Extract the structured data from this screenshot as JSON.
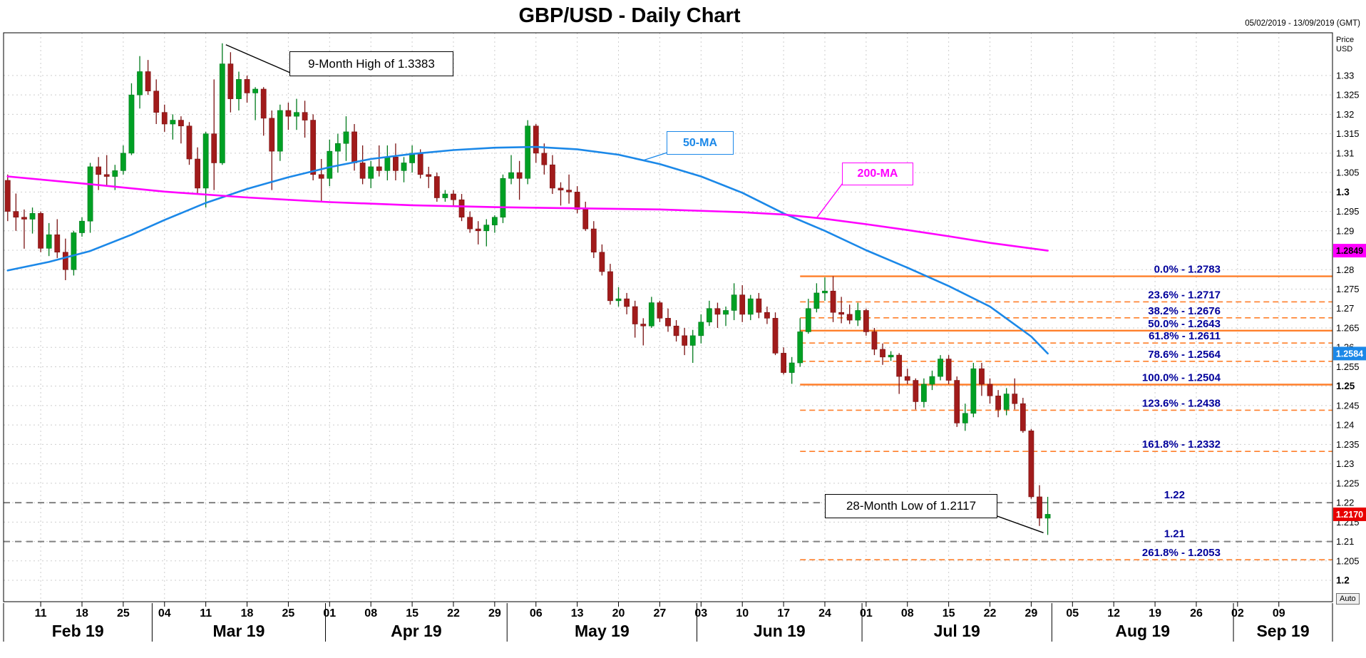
{
  "window": {
    "title": "GBP/USD - Daily Chart",
    "date_range": "05/02/2019 - 13/09/2019 (GMT)",
    "price_axis_title": [
      "Price",
      "USD"
    ],
    "auto_button_label": "Auto"
  },
  "annotations": {
    "high_callout": "9-Month High of 1.3383",
    "low_callout": "28-Month Low of 1.2117",
    "ma50_label": "50-MA",
    "ma200_label": "200-MA"
  },
  "colors": {
    "up_candle": "#00A024",
    "up_border": "#007A1C",
    "down_candle": "#A11B1B",
    "down_border": "#7A1212",
    "ma50": "#1B88E8",
    "ma200": "#FF00FF",
    "fib": "#FF7F2A",
    "fib_text": "#00009B",
    "support": "#808080",
    "grid": "#CDCDCD"
  },
  "chart_data": {
    "type": "candlestick",
    "symbol": "GBP/USD",
    "timeframe": "Daily",
    "title": "GBP/USD - Daily Chart",
    "period_shown": "05/02/2019 - 13/09/2019 (GMT)",
    "extremes": {
      "high": 1.3383,
      "high_label": "9-Month High of 1.3383",
      "low": 1.2117,
      "low_label": "28-Month Low of 1.2117",
      "last_price": 1.217
    },
    "y_axis": {
      "min": 1.1945,
      "max": 1.341,
      "tick_step": 0.005,
      "ticks": [
        "1.33",
        "1.325",
        "1.32",
        "1.315",
        "1.31",
        "1.305",
        "1.3",
        "1.295",
        "1.29",
        "1.285",
        "1.28",
        "1.275",
        "1.27",
        "1.265",
        "1.26",
        "1.255",
        "1.25",
        "1.245",
        "1.24",
        "1.235",
        "1.23",
        "1.225",
        "1.22",
        "1.215",
        "1.21",
        "1.205",
        "1.2"
      ],
      "bold_labels": [
        "1.3",
        "1.25",
        "1.2"
      ]
    },
    "x_axis": {
      "slots": 161,
      "week_tick_indices": [
        4,
        9,
        14,
        19,
        24,
        29,
        34,
        39,
        44,
        49,
        54,
        59,
        64,
        69,
        74,
        79,
        84,
        89,
        94,
        99,
        104,
        109,
        114,
        119,
        124,
        129,
        134,
        139,
        144,
        149,
        154
      ],
      "week_tick_labels": [
        "11",
        "18",
        "25",
        "04",
        "11",
        "18",
        "25",
        "01",
        "08",
        "15",
        "22",
        "29",
        "06",
        "13",
        "20",
        "27",
        "03",
        "10",
        "17",
        "24",
        "01",
        "08",
        "15",
        "22",
        "29",
        "05",
        "12",
        "19",
        "26",
        "02",
        "09"
      ],
      "months": [
        {
          "label": "Feb 19",
          "start": 0,
          "end": 18
        },
        {
          "label": "Mar 19",
          "start": 18,
          "end": 39
        },
        {
          "label": "Apr 19",
          "start": 39,
          "end": 61
        },
        {
          "label": "May 19",
          "start": 61,
          "end": 84
        },
        {
          "label": "Jun 19",
          "start": 84,
          "end": 104
        },
        {
          "label": "Jul 19",
          "start": 104,
          "end": 127
        },
        {
          "label": "Aug 19",
          "start": 127,
          "end": 149
        },
        {
          "label": "Sep 19",
          "start": 149,
          "end": 161
        }
      ]
    },
    "candles_ohlc": [
      [
        1.303,
        1.3045,
        1.2925,
        1.295
      ],
      [
        1.295,
        1.2996,
        1.29,
        1.2935
      ],
      [
        1.2935,
        1.2955,
        1.2854,
        1.293
      ],
      [
        1.293,
        1.296,
        1.2893,
        1.2945
      ],
      [
        1.2945,
        1.295,
        1.2845,
        1.2855
      ],
      [
        1.2855,
        1.292,
        1.2835,
        1.289
      ],
      [
        1.289,
        1.293,
        1.283,
        1.2845
      ],
      [
        1.2845,
        1.288,
        1.2773,
        1.28
      ],
      [
        1.28,
        1.29,
        1.2785,
        1.2895
      ],
      [
        1.2895,
        1.2935,
        1.2885,
        1.2925
      ],
      [
        1.2925,
        1.3075,
        1.2895,
        1.3065
      ],
      [
        1.3065,
        1.309,
        1.3005,
        1.3045
      ],
      [
        1.3045,
        1.3095,
        1.3015,
        1.304
      ],
      [
        1.304,
        1.307,
        1.3005,
        1.3055
      ],
      [
        1.3055,
        1.312,
        1.3045,
        1.31
      ],
      [
        1.31,
        1.328,
        1.3095,
        1.325
      ],
      [
        1.325,
        1.335,
        1.3215,
        1.331
      ],
      [
        1.331,
        1.334,
        1.325,
        1.326
      ],
      [
        1.326,
        1.329,
        1.3175,
        1.3205
      ],
      [
        1.3205,
        1.3225,
        1.3155,
        1.3175
      ],
      [
        1.3175,
        1.32,
        1.3135,
        1.3185
      ],
      [
        1.3185,
        1.3195,
        1.3125,
        1.317
      ],
      [
        1.317,
        1.318,
        1.307,
        1.3085
      ],
      [
        1.3085,
        1.3115,
        1.2995,
        1.301
      ],
      [
        1.301,
        1.3155,
        1.296,
        1.315
      ],
      [
        1.315,
        1.329,
        1.3005,
        1.3075
      ],
      [
        1.3075,
        1.3383,
        1.307,
        1.333
      ],
      [
        1.333,
        1.336,
        1.3205,
        1.324
      ],
      [
        1.324,
        1.331,
        1.321,
        1.329
      ],
      [
        1.329,
        1.33,
        1.323,
        1.3255
      ],
      [
        1.3255,
        1.327,
        1.3185,
        1.3265
      ],
      [
        1.3265,
        1.327,
        1.3145,
        1.319
      ],
      [
        1.319,
        1.321,
        1.3005,
        1.3105
      ],
      [
        1.3105,
        1.3225,
        1.308,
        1.321
      ],
      [
        1.321,
        1.323,
        1.316,
        1.3195
      ],
      [
        1.3195,
        1.324,
        1.316,
        1.3205
      ],
      [
        1.3205,
        1.3235,
        1.314,
        1.3185
      ],
      [
        1.3185,
        1.32,
        1.303,
        1.3045
      ],
      [
        1.3045,
        1.3085,
        1.2977,
        1.3035
      ],
      [
        1.3035,
        1.3135,
        1.3015,
        1.3105
      ],
      [
        1.3105,
        1.315,
        1.305,
        1.3125
      ],
      [
        1.3125,
        1.3195,
        1.308,
        1.3155
      ],
      [
        1.3155,
        1.3175,
        1.3055,
        1.3075
      ],
      [
        1.3075,
        1.312,
        1.302,
        1.3035
      ],
      [
        1.3035,
        1.308,
        1.301,
        1.3065
      ],
      [
        1.3065,
        1.312,
        1.304,
        1.3055
      ],
      [
        1.3055,
        1.312,
        1.303,
        1.309
      ],
      [
        1.309,
        1.3125,
        1.303,
        1.3055
      ],
      [
        1.3055,
        1.309,
        1.3025,
        1.3075
      ],
      [
        1.3075,
        1.312,
        1.305,
        1.31
      ],
      [
        1.31,
        1.311,
        1.3035,
        1.3045
      ],
      [
        1.3045,
        1.3065,
        1.301,
        1.304
      ],
      [
        1.304,
        1.305,
        1.2975,
        1.2985
      ],
      [
        1.2985,
        1.3005,
        1.2975,
        1.2995
      ],
      [
        1.2995,
        1.3005,
        1.2965,
        1.298
      ],
      [
        1.298,
        1.2995,
        1.2925,
        1.2935
      ],
      [
        1.2935,
        1.295,
        1.2895,
        1.2905
      ],
      [
        1.2905,
        1.2925,
        1.2865,
        1.29
      ],
      [
        1.29,
        1.293,
        1.286,
        1.2915
      ],
      [
        1.2915,
        1.294,
        1.2895,
        1.2935
      ],
      [
        1.2935,
        1.3045,
        1.292,
        1.3035
      ],
      [
        1.3035,
        1.3095,
        1.302,
        1.305
      ],
      [
        1.305,
        1.308,
        1.298,
        1.3035
      ],
      [
        1.3035,
        1.3185,
        1.302,
        1.317
      ],
      [
        1.317,
        1.3175,
        1.3075,
        1.31
      ],
      [
        1.31,
        1.3125,
        1.3045,
        1.307
      ],
      [
        1.307,
        1.3095,
        1.2995,
        1.301
      ],
      [
        1.301,
        1.3025,
        1.2965,
        1.3005
      ],
      [
        1.3005,
        1.3045,
        1.297,
        1.3
      ],
      [
        1.3,
        1.3015,
        1.2945,
        1.2955
      ],
      [
        1.2955,
        1.2975,
        1.29,
        1.2905
      ],
      [
        1.2905,
        1.2925,
        1.283,
        1.2845
      ],
      [
        1.2845,
        1.2865,
        1.2785,
        1.2795
      ],
      [
        1.2795,
        1.2815,
        1.271,
        1.272
      ],
      [
        1.272,
        1.2755,
        1.2705,
        1.2725
      ],
      [
        1.2725,
        1.274,
        1.2685,
        1.2705
      ],
      [
        1.2705,
        1.272,
        1.2625,
        1.266
      ],
      [
        1.266,
        1.2675,
        1.2605,
        1.2655
      ],
      [
        1.2655,
        1.273,
        1.265,
        1.2715
      ],
      [
        1.2715,
        1.272,
        1.2665,
        1.2675
      ],
      [
        1.2675,
        1.27,
        1.264,
        1.2655
      ],
      [
        1.2655,
        1.267,
        1.2615,
        1.263
      ],
      [
        1.263,
        1.265,
        1.258,
        1.2605
      ],
      [
        1.2605,
        1.2645,
        1.256,
        1.263
      ],
      [
        1.263,
        1.2685,
        1.261,
        1.2665
      ],
      [
        1.2665,
        1.272,
        1.2655,
        1.27
      ],
      [
        1.27,
        1.2715,
        1.265,
        1.2685
      ],
      [
        1.2685,
        1.2705,
        1.2655,
        1.2695
      ],
      [
        1.2695,
        1.2765,
        1.267,
        1.2735
      ],
      [
        1.2735,
        1.276,
        1.2665,
        1.2685
      ],
      [
        1.2685,
        1.2735,
        1.267,
        1.2725
      ],
      [
        1.2725,
        1.274,
        1.2675,
        1.269
      ],
      [
        1.269,
        1.2705,
        1.266,
        1.2675
      ],
      [
        1.2675,
        1.269,
        1.258,
        1.2585
      ],
      [
        1.2585,
        1.26,
        1.253,
        1.2535
      ],
      [
        1.2535,
        1.2575,
        1.2506,
        1.256
      ],
      [
        1.256,
        1.2675,
        1.255,
        1.264
      ],
      [
        1.264,
        1.2725,
        1.2635,
        1.27
      ],
      [
        1.27,
        1.2765,
        1.269,
        1.274
      ],
      [
        1.274,
        1.278,
        1.272,
        1.2745
      ],
      [
        1.2745,
        1.2783,
        1.2665,
        1.269
      ],
      [
        1.269,
        1.273,
        1.2662,
        1.2685
      ],
      [
        1.2685,
        1.271,
        1.266,
        1.267
      ],
      [
        1.267,
        1.2715,
        1.2655,
        1.2695
      ],
      [
        1.2695,
        1.27,
        1.263,
        1.264
      ],
      [
        1.264,
        1.265,
        1.258,
        1.2595
      ],
      [
        1.2595,
        1.261,
        1.2555,
        1.2575
      ],
      [
        1.2575,
        1.259,
        1.2565,
        1.258
      ],
      [
        1.258,
        1.2585,
        1.248,
        1.2525
      ],
      [
        1.2525,
        1.2545,
        1.2505,
        1.2515
      ],
      [
        1.2515,
        1.252,
        1.244,
        1.246
      ],
      [
        1.246,
        1.252,
        1.2445,
        1.2505
      ],
      [
        1.2505,
        1.254,
        1.249,
        1.2525
      ],
      [
        1.2525,
        1.258,
        1.2515,
        1.257
      ],
      [
        1.257,
        1.258,
        1.2505,
        1.2515
      ],
      [
        1.2515,
        1.2525,
        1.2395,
        1.2405
      ],
      [
        1.2405,
        1.2455,
        1.2385,
        1.243
      ],
      [
        1.243,
        1.256,
        1.242,
        1.2545
      ],
      [
        1.2545,
        1.256,
        1.2475,
        1.2505
      ],
      [
        1.2505,
        1.252,
        1.2455,
        1.2475
      ],
      [
        1.2475,
        1.249,
        1.242,
        1.244
      ],
      [
        1.244,
        1.2495,
        1.2425,
        1.248
      ],
      [
        1.248,
        1.252,
        1.244,
        1.2455
      ],
      [
        1.2455,
        1.247,
        1.238,
        1.2385
      ],
      [
        1.2385,
        1.239,
        1.221,
        1.2215
      ],
      [
        1.2215,
        1.2245,
        1.214,
        1.216
      ],
      [
        1.216,
        1.2215,
        1.2117,
        1.217
      ]
    ],
    "ma50": {
      "label": "50-MA",
      "last_value": 1.2584,
      "points": [
        [
          0,
          1.2798
        ],
        [
          5,
          1.282
        ],
        [
          10,
          1.2848
        ],
        [
          15,
          1.289
        ],
        [
          19,
          1.2928
        ],
        [
          24,
          1.2972
        ],
        [
          29,
          1.3008
        ],
        [
          34,
          1.3038
        ],
        [
          39,
          1.3064
        ],
        [
          44,
          1.3085
        ],
        [
          49,
          1.3098
        ],
        [
          54,
          1.3108
        ],
        [
          59,
          1.3114
        ],
        [
          64,
          1.3116
        ],
        [
          69,
          1.311
        ],
        [
          74,
          1.3096
        ],
        [
          79,
          1.3072
        ],
        [
          84,
          1.304
        ],
        [
          89,
          1.2998
        ],
        [
          94,
          1.2945
        ],
        [
          99,
          1.29
        ],
        [
          104,
          1.285
        ],
        [
          109,
          1.2805
        ],
        [
          114,
          1.2758
        ],
        [
          119,
          1.2705
        ],
        [
          124,
          1.2628
        ],
        [
          126,
          1.2584
        ]
      ]
    },
    "ma200": {
      "label": "200-MA",
      "last_value": 1.2849,
      "points": [
        [
          0,
          1.304
        ],
        [
          10,
          1.302
        ],
        [
          19,
          1.3001
        ],
        [
          29,
          1.2986
        ],
        [
          39,
          1.2974
        ],
        [
          49,
          1.2966
        ],
        [
          59,
          1.2961
        ],
        [
          69,
          1.2958
        ],
        [
          79,
          1.2955
        ],
        [
          89,
          1.2948
        ],
        [
          94,
          1.2942
        ],
        [
          99,
          1.2931
        ],
        [
          104,
          1.2917
        ],
        [
          109,
          1.2902
        ],
        [
          114,
          1.2886
        ],
        [
          119,
          1.2869
        ],
        [
          126,
          1.2849
        ]
      ]
    },
    "fibonacci": {
      "start_index": 96,
      "levels": [
        {
          "pct": "0.0%",
          "price": 1.2783,
          "label": "0.0% - 1.2783",
          "style": "solid"
        },
        {
          "pct": "23.6%",
          "price": 1.2717,
          "label": "23.6% - 1.2717",
          "style": "dashed"
        },
        {
          "pct": "38.2%",
          "price": 1.2676,
          "label": "38.2% - 1.2676",
          "style": "dashed"
        },
        {
          "pct": "50.0%",
          "price": 1.2643,
          "label": "50.0% - 1.2643",
          "style": "solid"
        },
        {
          "pct": "61.8%",
          "price": 1.2611,
          "label": "61.8% - 1.2611",
          "style": "dashed"
        },
        {
          "pct": "78.6%",
          "price": 1.2564,
          "label": "78.6% - 1.2564",
          "style": "dashed"
        },
        {
          "pct": "100.0%",
          "price": 1.2504,
          "label": "100.0% - 1.2504",
          "style": "solid"
        },
        {
          "pct": "123.6%",
          "price": 1.2438,
          "label": "123.6% - 1.2438",
          "style": "dashed"
        },
        {
          "pct": "161.8%",
          "price": 1.2332,
          "label": "161.8% - 1.2332",
          "style": "dashed"
        },
        {
          "pct": "261.8%",
          "price": 1.2053,
          "label": "261.8% - 1.2053",
          "style": "dashed"
        }
      ]
    },
    "support_lines": [
      {
        "label": "1.22",
        "price": 1.22
      },
      {
        "label": "1.21",
        "price": 1.21
      }
    ],
    "price_t ags_note": "",
    "price_tags": [
      {
        "name": "ma200-price-tag",
        "label": "1.2849",
        "price": 1.2849,
        "bg": "#FF00FF",
        "fg": "#000000"
      },
      {
        "name": "ma50-price-tag",
        "label": "1.2584",
        "price": 1.2584,
        "bg": "#1B88E8",
        "fg": "#FFFFFF"
      },
      {
        "name": "last-price-tag",
        "label": "1.2170",
        "price": 1.217,
        "bg": "#E80000",
        "fg": "#FFFFFF"
      }
    ]
  }
}
